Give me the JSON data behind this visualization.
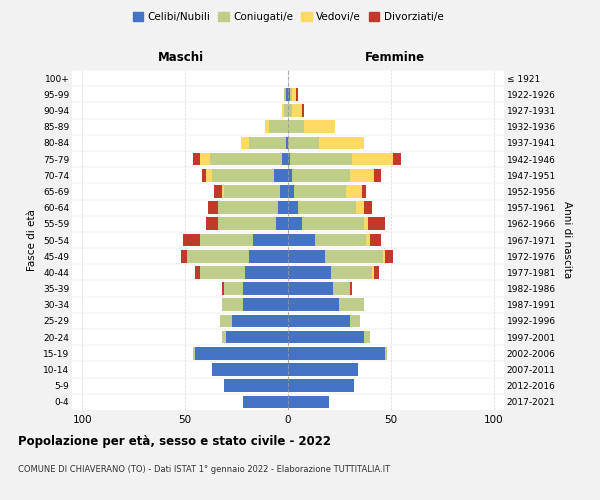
{
  "age_groups": [
    "100+",
    "95-99",
    "90-94",
    "85-89",
    "80-84",
    "75-79",
    "70-74",
    "65-69",
    "60-64",
    "55-59",
    "50-54",
    "45-49",
    "40-44",
    "35-39",
    "30-34",
    "25-29",
    "20-24",
    "15-19",
    "10-14",
    "5-9",
    "0-4"
  ],
  "birth_years": [
    "≤ 1921",
    "1922-1926",
    "1927-1931",
    "1932-1936",
    "1937-1941",
    "1942-1946",
    "1947-1951",
    "1952-1956",
    "1957-1961",
    "1962-1966",
    "1967-1971",
    "1972-1976",
    "1977-1981",
    "1982-1986",
    "1987-1991",
    "1992-1996",
    "1997-2001",
    "2002-2006",
    "2007-2011",
    "2012-2016",
    "2017-2021"
  ],
  "maschi": {
    "celibi": [
      0,
      1,
      0,
      0,
      1,
      3,
      7,
      4,
      5,
      6,
      17,
      19,
      21,
      22,
      22,
      27,
      30,
      45,
      37,
      31,
      22
    ],
    "coniugati": [
      0,
      1,
      2,
      9,
      18,
      35,
      30,
      27,
      29,
      28,
      26,
      30,
      22,
      9,
      10,
      6,
      2,
      1,
      0,
      0,
      0
    ],
    "vedovi": [
      0,
      0,
      1,
      2,
      4,
      5,
      3,
      1,
      0,
      0,
      0,
      0,
      0,
      0,
      0,
      0,
      0,
      0,
      0,
      0,
      0
    ],
    "divorziati": [
      0,
      0,
      0,
      0,
      0,
      3,
      2,
      4,
      5,
      6,
      8,
      3,
      2,
      1,
      0,
      0,
      0,
      0,
      0,
      0,
      0
    ]
  },
  "femmine": {
    "nubili": [
      0,
      1,
      0,
      0,
      0,
      1,
      2,
      3,
      5,
      7,
      13,
      18,
      21,
      22,
      25,
      30,
      37,
      47,
      34,
      32,
      20
    ],
    "coniugate": [
      0,
      1,
      2,
      8,
      15,
      30,
      28,
      25,
      28,
      30,
      25,
      28,
      20,
      8,
      12,
      5,
      3,
      1,
      0,
      0,
      0
    ],
    "vedove": [
      0,
      2,
      5,
      15,
      22,
      20,
      12,
      8,
      4,
      2,
      2,
      1,
      1,
      0,
      0,
      0,
      0,
      0,
      0,
      0,
      0
    ],
    "divorziate": [
      0,
      1,
      1,
      0,
      0,
      4,
      3,
      2,
      4,
      8,
      5,
      4,
      2,
      1,
      0,
      0,
      0,
      0,
      0,
      0,
      0
    ]
  },
  "colors": {
    "celibi": "#4472C4",
    "coniugati": "#BFCD8A",
    "vedovi": "#FFD966",
    "divorziati": "#C0392B"
  },
  "xlim": 105,
  "title": "Popolazione per età, sesso e stato civile - 2022",
  "subtitle": "COMUNE DI CHIAVERANO (TO) - Dati ISTAT 1° gennaio 2022 - Elaborazione TUTTITALIA.IT",
  "ylabel_left": "Fasce di età",
  "ylabel_right": "Anni di nascita",
  "label_maschi": "Maschi",
  "label_femmine": "Femmine",
  "legend_labels": [
    "Celibi/Nubili",
    "Coniugati/e",
    "Vedovi/e",
    "Divorziati/e"
  ],
  "bg_color": "#F2F2F2",
  "plot_bg": "#FFFFFF"
}
